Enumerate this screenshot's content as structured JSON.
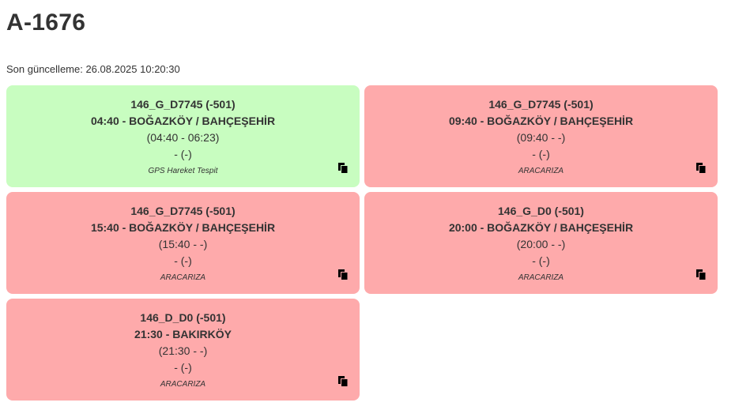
{
  "page": {
    "title": "A-1676",
    "last_updated": "Son güncelleme: 26.08.2025 10:20:30"
  },
  "colors": {
    "ok": "#c8fdc0",
    "fault": "#feaaab",
    "text": "#333333"
  },
  "cards": [
    {
      "status_color": "green",
      "route": "146_G_D7745 (-501)",
      "trip": "04:40 - BOĞAZKÖY / BAHÇEŞEHİR",
      "times": "(04:40 - 06:23)",
      "extra": "- (-)",
      "status": "GPS Hareket Tespit",
      "icon": "copy-icon"
    },
    {
      "status_color": "red",
      "route": "146_G_D7745 (-501)",
      "trip": "09:40 - BOĞAZKÖY / BAHÇEŞEHİR",
      "times": "(09:40 - -)",
      "extra": "- (-)",
      "status": "ARACARIZA",
      "icon": "copy-icon"
    },
    {
      "status_color": "red",
      "route": "146_G_D7745 (-501)",
      "trip": "15:40 - BOĞAZKÖY / BAHÇEŞEHİR",
      "times": "(15:40 - -)",
      "extra": "- (-)",
      "status": "ARACARIZA",
      "icon": "copy-icon"
    },
    {
      "status_color": "red",
      "route": "146_G_D0 (-501)",
      "trip": "20:00 - BOĞAZKÖY / BAHÇEŞEHİR",
      "times": "(20:00 - -)",
      "extra": "- (-)",
      "status": "ARACARIZA",
      "icon": "copy-icon"
    },
    {
      "status_color": "red",
      "route": "146_D_D0 (-501)",
      "trip": "21:30 - BAKIRKÖY",
      "times": "(21:30 - -)",
      "extra": "- (-)",
      "status": "ARACARIZA",
      "icon": "copy-icon"
    }
  ]
}
